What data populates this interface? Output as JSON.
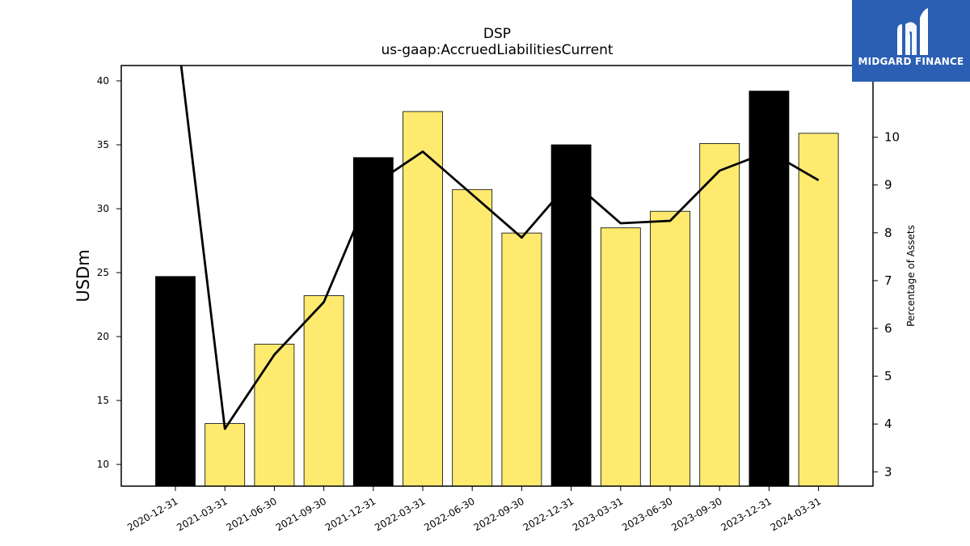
{
  "chart_data": {
    "type": "bar",
    "title": "DSP",
    "subtitle": "us-gaap:AccruedLiabilitiesCurrent",
    "ylabel": "USDm",
    "y2label": "Percentage of Assets",
    "ylim": [
      8.3,
      41.2
    ],
    "y2lim": [
      2.7,
      11.5
    ],
    "yticks": [
      10,
      15,
      20,
      25,
      30,
      35,
      40
    ],
    "y2ticks": [
      3,
      4,
      5,
      6,
      7,
      8,
      9,
      10
    ],
    "categories": [
      "2020-12-31",
      "2021-03-31",
      "2021-06-30",
      "2021-09-30",
      "2021-12-31",
      "2022-03-31",
      "2022-06-30",
      "2022-09-30",
      "2022-12-31",
      "2023-03-31",
      "2023-06-30",
      "2023-09-30",
      "2023-12-31",
      "2024-03-31"
    ],
    "series": [
      {
        "type": "bar",
        "values": [
          24.7,
          13.2,
          19.4,
          23.2,
          34.0,
          37.6,
          31.5,
          28.1,
          35.0,
          28.5,
          29.8,
          35.1,
          39.2,
          35.9
        ],
        "colors": [
          "#000000",
          "#fdea6f",
          "#fdea6f",
          "#fdea6f",
          "#000000",
          "#fdea6f",
          "#fdea6f",
          "#fdea6f",
          "#000000",
          "#fdea6f",
          "#fdea6f",
          "#fdea6f",
          "#000000",
          "#fdea6f"
        ]
      },
      {
        "type": "line",
        "axis": "right",
        "values": [
          12.5,
          3.9,
          5.45,
          6.55,
          9.0,
          9.7,
          8.8,
          7.9,
          9.1,
          8.2,
          8.25,
          9.3,
          9.7,
          9.1
        ],
        "color": "#000000"
      }
    ],
    "grid": false,
    "legend": "none"
  },
  "logo": {
    "text": "MIDGARD FINANCE",
    "color": "#2b5fb4"
  }
}
